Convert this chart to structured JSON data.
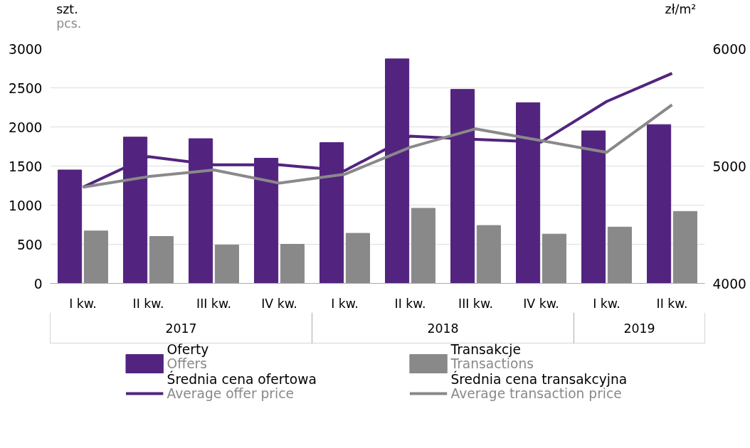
{
  "chart_data": {
    "type": "bar",
    "categories": [
      "I kw.",
      "II kw.",
      "III kw.",
      "IV kw.",
      "I kw.",
      "II kw.",
      "III kw.",
      "IV kw.",
      "I kw.",
      "II kw."
    ],
    "annotations": [
      "2017",
      "2018",
      "2019"
    ],
    "ylabel": "szt.\npcs.",
    "y2label": "zł/m²",
    "ylim": [
      0,
      3000
    ],
    "yticks": [
      0,
      500,
      1000,
      1500,
      2000,
      2500,
      3000
    ],
    "y2lim": [
      4000,
      6000
    ],
    "y2ticks": [
      4000,
      5000,
      6000
    ],
    "grid": "y",
    "legend": "bottom",
    "series": [
      {
        "name": "Oferty\nOffers",
        "color": "#52247f",
        "values": [
          1450,
          1870,
          1850,
          1600,
          1800,
          2870,
          2480,
          2310,
          1950,
          2030
        ]
      },
      {
        "name": "Transakcje\nTransactions",
        "color": "#898989",
        "values": [
          670,
          600,
          490,
          500,
          640,
          960,
          740,
          630,
          720,
          920
        ]
      },
      {
        "name": "Średnia cena ofertowa\nAverage offer price",
        "type": "line",
        "axis": "y2",
        "color": "#52247f",
        "values": [
          4820,
          5080,
          5010,
          5010,
          4960,
          5255,
          5228,
          5205,
          5550,
          5790
        ]
      },
      {
        "name": "Średnia cena transakcyjna\nAverage transaction price",
        "type": "line",
        "axis": "y2",
        "color": "#898989",
        "values": [
          4820,
          4910,
          4967,
          4855,
          4930,
          5160,
          5317,
          5217,
          5117,
          5522
        ]
      }
    ]
  }
}
